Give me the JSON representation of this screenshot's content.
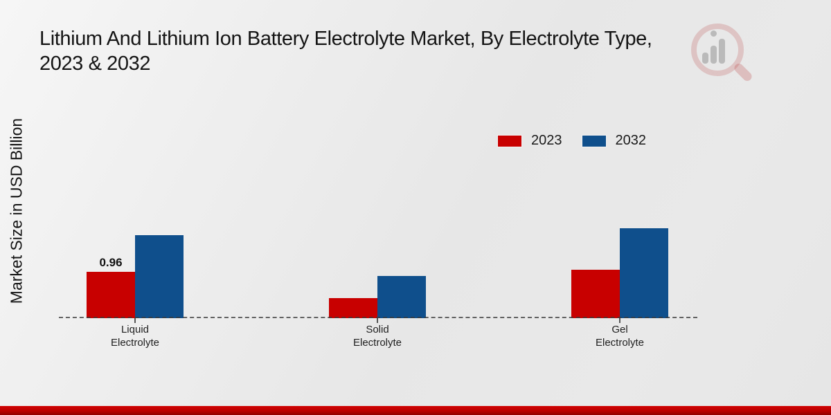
{
  "title": {
    "line1": "Lithium And Lithium Ion Battery Electrolyte Market, By Electrolyte Type,",
    "line2": "2023 & 2032"
  },
  "colors": {
    "series_2023": "#c80000",
    "series_2032": "#0f4f8c",
    "footer_bar": "#bb0000",
    "background": "#e9e9e9",
    "baseline": "#3c3c3c"
  },
  "legend": {
    "items": [
      {
        "label": "2023",
        "color": "#c80000"
      },
      {
        "label": "2032",
        "color": "#0f4f8c"
      }
    ]
  },
  "chart_data": {
    "type": "bar",
    "title": "Lithium And Lithium Ion Battery Electrolyte Market, By Electrolyte Type, 2023 & 2032",
    "ylabel": "Market Size in USD Billion",
    "xlabel": "",
    "categories": [
      "Liquid Electrolyte",
      "Solid Electrolyte",
      "Gel Electrolyte"
    ],
    "series": [
      {
        "name": "2023",
        "color": "#c80000",
        "values": [
          0.96,
          0.42,
          1.0
        ]
      },
      {
        "name": "2032",
        "color": "#0f4f8c",
        "values": [
          1.72,
          0.87,
          1.86
        ]
      }
    ],
    "data_labels": [
      {
        "series": "2023",
        "category": "Liquid Electrolyte",
        "text": "0.96"
      }
    ],
    "ylim": [
      0,
      2
    ],
    "grid": false,
    "y_axis_ticks_visible": false,
    "baseline_style": "dashed",
    "legend_position": "top-right"
  },
  "watermark": {
    "name": "magnifier-bar-chart-logo"
  }
}
